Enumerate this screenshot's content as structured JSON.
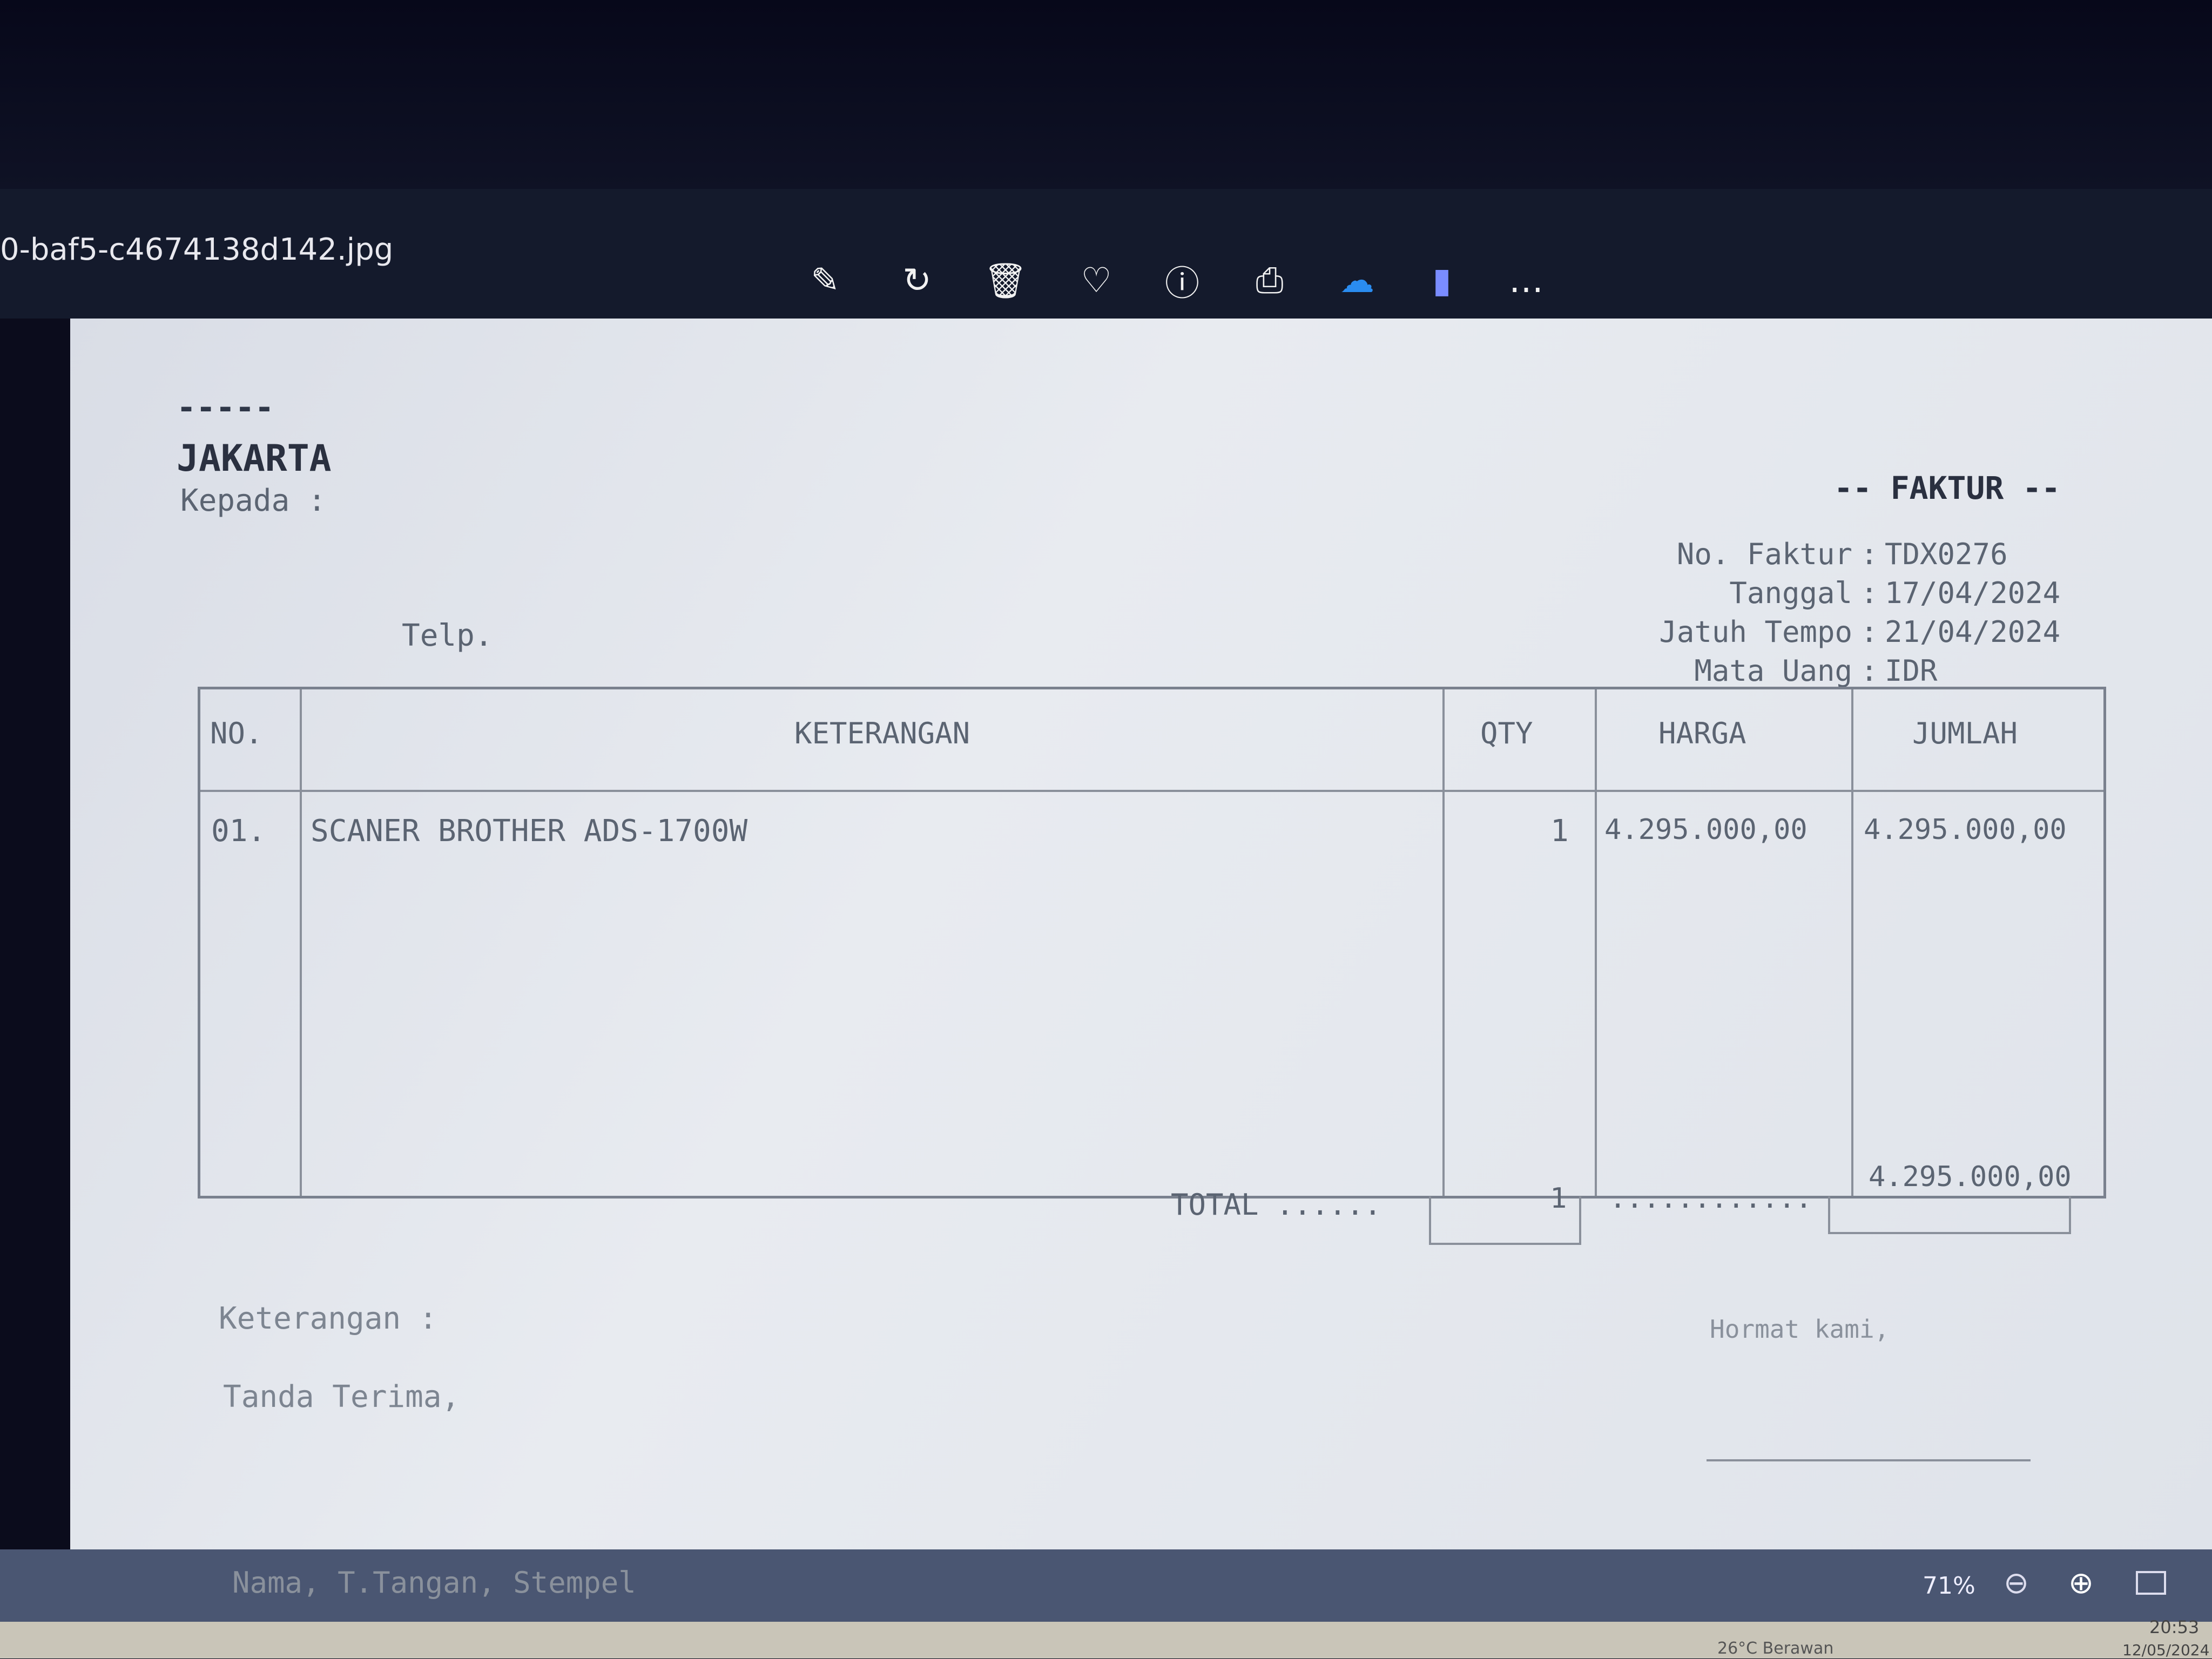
{
  "window": {
    "filename": "0-baf5-c4674138d142.jpg"
  },
  "toolbar": [
    {
      "name": "edit-image-icon",
      "glyph": "✎"
    },
    {
      "name": "rotate-icon",
      "glyph": "↻"
    },
    {
      "name": "delete-icon",
      "glyph": "🗑"
    },
    {
      "name": "favorite-icon",
      "glyph": "♡"
    },
    {
      "name": "info-icon",
      "glyph": "ⓘ"
    },
    {
      "name": "print-icon",
      "glyph": "⎙"
    },
    {
      "name": "onedrive-icon",
      "glyph": "☁"
    },
    {
      "name": "clipchamp-icon",
      "glyph": "▮"
    },
    {
      "name": "more-icon",
      "glyph": "…"
    }
  ],
  "invoice": {
    "company_line": "-----",
    "city": "JAKARTA",
    "to_label": "Kepada :",
    "phone_label": "Telp.",
    "title": "-- FAKTUR --",
    "meta": [
      {
        "label": "No. Faktur",
        "value": "TDX0276"
      },
      {
        "label": "Tanggal",
        "value": "17/04/2024"
      },
      {
        "label": "Jatuh Tempo",
        "value": "21/04/2024"
      },
      {
        "label": "Mata Uang",
        "value": "IDR"
      }
    ],
    "columns": [
      "NO.",
      "KETERANGAN",
      "QTY",
      "HARGA",
      "JUMLAH"
    ],
    "rows": [
      {
        "no": "01.",
        "desc": "SCANER BROTHER ADS-1700W",
        "qty": "1",
        "price": "4.295.000,00",
        "amount": "4.295.000,00"
      }
    ],
    "total_label": "TOTAL ......",
    "total_qty": "1",
    "total_dots": "............",
    "total_amount": "4.295.000,00",
    "notes_label": "Keterangan :",
    "receipt_label": "Tanda Terima,",
    "regards_label": "Hormat kami,",
    "sign_label": "Nama, T.Tangan, Stempel"
  },
  "statusbar": {
    "zoom": "71%",
    "time": "20:53",
    "date": "12/05/2024",
    "weather": "26°C Berawan"
  }
}
